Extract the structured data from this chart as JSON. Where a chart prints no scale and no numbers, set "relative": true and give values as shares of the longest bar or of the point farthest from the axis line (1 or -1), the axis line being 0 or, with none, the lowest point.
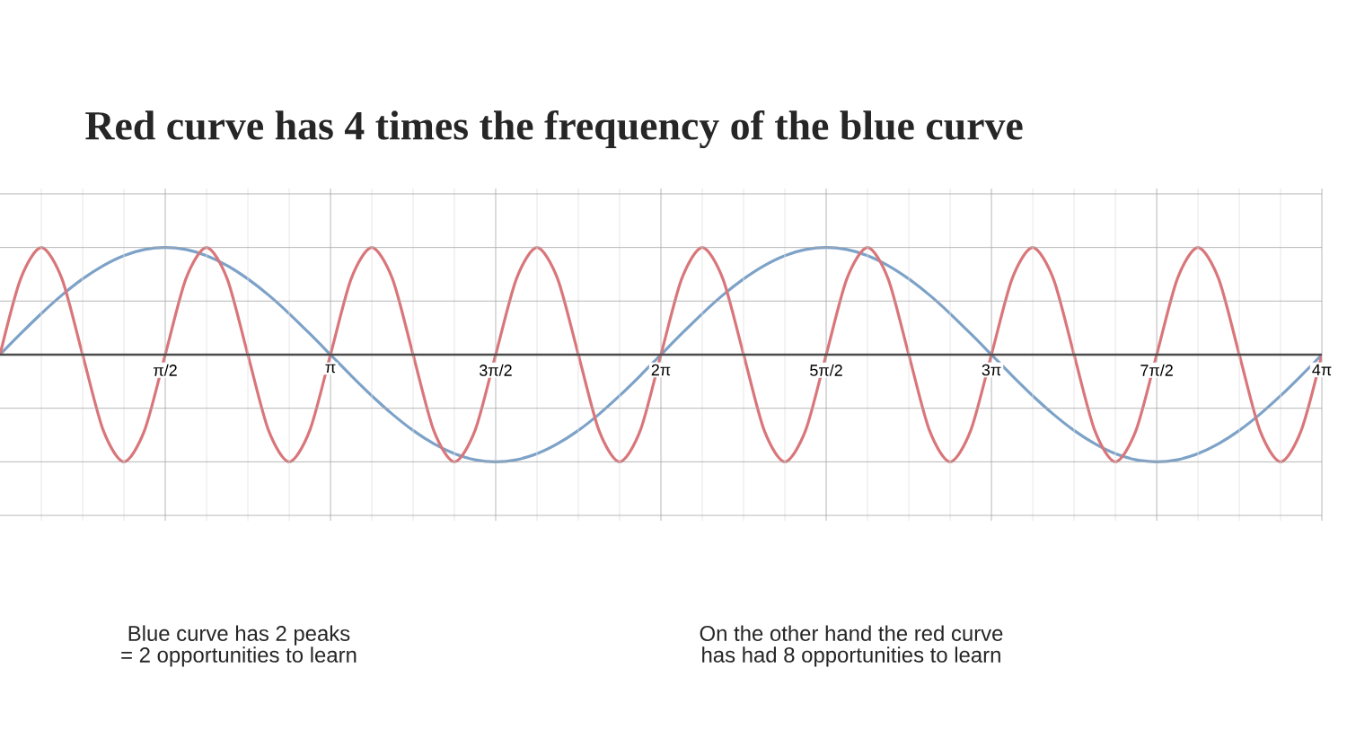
{
  "chart_data": {
    "type": "line",
    "title": "Red curve has 4 times the frequency of the blue curve",
    "relative": true,
    "grid": true,
    "marker": "none",
    "line_style": "solid",
    "tick_labels": "x",
    "xlim": [
      0,
      12.566
    ],
    "xticks": [
      {
        "value": 1.571,
        "label": "π/2"
      },
      {
        "value": 3.142,
        "label": "π"
      },
      {
        "value": 4.712,
        "label": "3π/2"
      },
      {
        "value": 6.283,
        "label": "2π"
      },
      {
        "value": 7.854,
        "label": "5π/2"
      },
      {
        "value": 9.425,
        "label": "3π"
      },
      {
        "value": 10.996,
        "label": "7π/2"
      },
      {
        "value": 12.566,
        "label": "4π"
      }
    ],
    "x": [
      0,
      0.196,
      0.393,
      0.589,
      0.785,
      0.982,
      1.178,
      1.374,
      1.571,
      1.767,
      1.963,
      2.16,
      2.356,
      2.553,
      2.749,
      2.945,
      3.142,
      3.338,
      3.534,
      3.731,
      3.927,
      4.123,
      4.32,
      4.516,
      4.712,
      4.909,
      5.105,
      5.301,
      5.498,
      5.694,
      5.89,
      6.087,
      6.283,
      6.48,
      6.676,
      6.872,
      7.069,
      7.265,
      7.461,
      7.658,
      7.854,
      8.05,
      8.247,
      8.443,
      8.639,
      8.836,
      9.032,
      9.228,
      9.425,
      9.621,
      9.817,
      10.014,
      10.21,
      10.407,
      10.603,
      10.799,
      10.996,
      11.192,
      11.388,
      11.585,
      11.781,
      11.977,
      12.174,
      12.37,
      12.566
    ],
    "series": [
      {
        "color": "#7da2c8",
        "values": [
          0,
          0.195,
          0.383,
          0.556,
          0.707,
          0.831,
          0.924,
          0.981,
          1,
          0.981,
          0.924,
          0.831,
          0.707,
          0.556,
          0.383,
          0.195,
          0,
          -0.195,
          -0.383,
          -0.556,
          -0.707,
          -0.831,
          -0.924,
          -0.981,
          -1,
          -0.981,
          -0.924,
          -0.831,
          -0.707,
          -0.556,
          -0.383,
          -0.195,
          0,
          0.195,
          0.383,
          0.556,
          0.707,
          0.831,
          0.924,
          0.981,
          1,
          0.981,
          0.924,
          0.831,
          0.707,
          0.556,
          0.383,
          0.195,
          0,
          -0.195,
          -0.383,
          -0.556,
          -0.707,
          -0.831,
          -0.924,
          -0.981,
          -1,
          -0.981,
          -0.924,
          -0.831,
          -0.707,
          -0.556,
          -0.383,
          -0.195,
          0
        ]
      },
      {
        "color": "#d9767a",
        "values": [
          0,
          0.707,
          1,
          0.707,
          0,
          -0.707,
          -1,
          -0.707,
          0,
          0.707,
          1,
          0.707,
          0,
          -0.707,
          -1,
          -0.707,
          0,
          0.707,
          1,
          0.707,
          0,
          -0.707,
          -1,
          -0.707,
          0,
          0.707,
          1,
          0.707,
          0,
          -0.707,
          -1,
          -0.707,
          0,
          0.707,
          1,
          0.707,
          0,
          -0.707,
          -1,
          -0.707,
          0,
          0.707,
          1,
          0.707,
          0,
          -0.707,
          -1,
          -0.707,
          0,
          0.707,
          1,
          0.707,
          0,
          -0.707,
          -1,
          -0.707,
          0,
          0.707,
          1,
          0.707,
          0,
          -0.707,
          -1,
          -0.707,
          0
        ]
      }
    ],
    "annotations": [
      "Blue curve has 2 peaks = 2 opportunities to learn",
      "On the other hand the red curve has had 8 opportunities to learn"
    ]
  }
}
